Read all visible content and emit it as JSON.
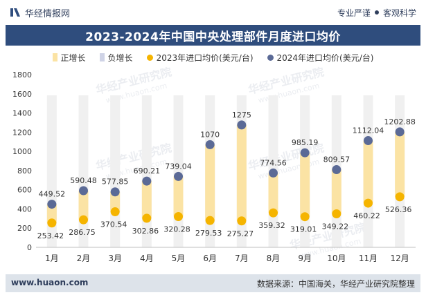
{
  "header": {
    "brand_name": "华经情报网",
    "tag_left": "专业严谨",
    "tag_right": "客观科学"
  },
  "title": "2023-2024年中国中央处理部件月度进口均价",
  "legend": {
    "positive": "正增长",
    "negative": "负增长",
    "series_2023": "2023年进口均价(美元/台)",
    "series_2024": "2024年进口均价(美元/台)"
  },
  "colors": {
    "positive_bar": "#fbe3a4",
    "negative_bar": "#cfd3e6",
    "series_2023": "#f5b400",
    "series_2024": "#5b6a96",
    "title_bg": "#2f4d7d",
    "column_bg": "#f0f0f0"
  },
  "chart_data": {
    "type": "bar",
    "categories": [
      "1月",
      "2月",
      "3月",
      "4月",
      "5月",
      "6月",
      "7月",
      "8月",
      "9月",
      "10月",
      "11月",
      "12月"
    ],
    "series": [
      {
        "name": "2023年进口均价(美元/台)",
        "values": [
          253.42,
          286.75,
          370.54,
          302.86,
          320.28,
          279.53,
          275.27,
          359.32,
          319.01,
          349.22,
          460.22,
          526.36
        ]
      },
      {
        "name": "2024年进口均价(美元/台)",
        "values": [
          449.52,
          590.48,
          577.85,
          690.21,
          739.04,
          1070,
          1275,
          774.56,
          985.19,
          809.57,
          1112.04,
          1202.88
        ]
      }
    ],
    "value_labels_2023": [
      "253.42",
      "286.75",
      "370.54",
      "302.86",
      "320.28",
      "279.53",
      "275.27",
      "359.32",
      "319.01",
      "349.22",
      "460.22",
      "526.36"
    ],
    "value_labels_2024": [
      "449.52",
      "590.48",
      "577.85",
      "690.21",
      "739.04",
      "1070",
      "1275",
      "774.56",
      "985.19",
      "809.57",
      "1112.04",
      "1202.88"
    ],
    "change_bars": "floating bars spanning from 2023 value to 2024 value; all months positive growth",
    "yticks": [
      0,
      200,
      400,
      600,
      800,
      1000,
      1200,
      1400,
      1600,
      1800
    ],
    "ylim": [
      0,
      1800
    ],
    "title": "2023-2024年中国中央处理部件月度进口均价",
    "xlabel": "",
    "ylabel": ""
  },
  "watermarks": [
    "华经产业研究院",
    "www.huaon.com"
  ],
  "footer": {
    "website": "www.huaon.com",
    "source": "数据来源：中国海关，华经产业研究院整理"
  }
}
